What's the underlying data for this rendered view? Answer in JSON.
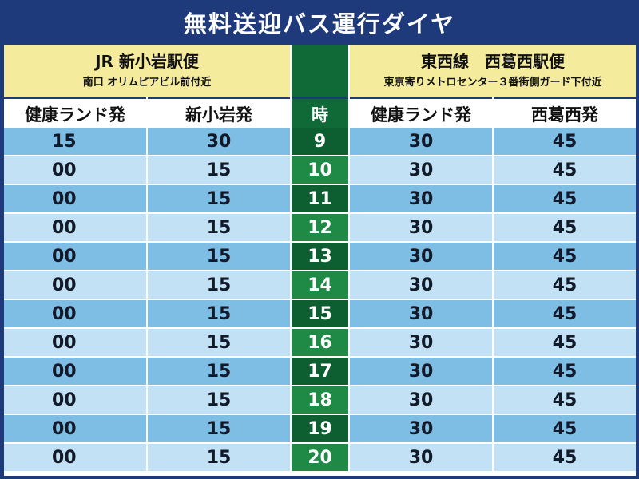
{
  "title": "無料送迎バス運行ダイヤ",
  "left_route": {
    "line1": "JR 新小岩駅便",
    "line2": "南口 オリムピアビル前付近"
  },
  "right_route": {
    "line1": "東西線　西葛西駅便",
    "line2": "東京寄りメトロセンター３番街側ガード下付近"
  },
  "headers": {
    "c1": "健康ランド発",
    "c2": "新小岩発",
    "hour": "時",
    "c3": "健康ランド発",
    "c4": "西葛西発"
  },
  "rows": [
    {
      "c1": "15",
      "c2": "30",
      "hour": "9",
      "c3": "30",
      "c4": "45"
    },
    {
      "c1": "00",
      "c2": "15",
      "hour": "10",
      "c3": "30",
      "c4": "45"
    },
    {
      "c1": "00",
      "c2": "15",
      "hour": "11",
      "c3": "30",
      "c4": "45"
    },
    {
      "c1": "00",
      "c2": "15",
      "hour": "12",
      "c3": "30",
      "c4": "45"
    },
    {
      "c1": "00",
      "c2": "15",
      "hour": "13",
      "c3": "30",
      "c4": "45"
    },
    {
      "c1": "00",
      "c2": "15",
      "hour": "14",
      "c3": "30",
      "c4": "45"
    },
    {
      "c1": "00",
      "c2": "15",
      "hour": "15",
      "c3": "30",
      "c4": "45"
    },
    {
      "c1": "00",
      "c2": "15",
      "hour": "16",
      "c3": "30",
      "c4": "45"
    },
    {
      "c1": "00",
      "c2": "15",
      "hour": "17",
      "c3": "30",
      "c4": "45"
    },
    {
      "c1": "00",
      "c2": "15",
      "hour": "18",
      "c3": "30",
      "c4": "45"
    },
    {
      "c1": "00",
      "c2": "15",
      "hour": "19",
      "c3": "30",
      "c4": "45"
    },
    {
      "c1": "00",
      "c2": "15",
      "hour": "20",
      "c3": "30",
      "c4": "45"
    }
  ],
  "colors": {
    "background": "#1e3a7a",
    "route_header": "#f4ec9c",
    "hour_dark": "#0d5e30",
    "hour_light": "#1e8a45",
    "row_dark": "#7ebde4",
    "row_light": "#c2e1f5"
  }
}
